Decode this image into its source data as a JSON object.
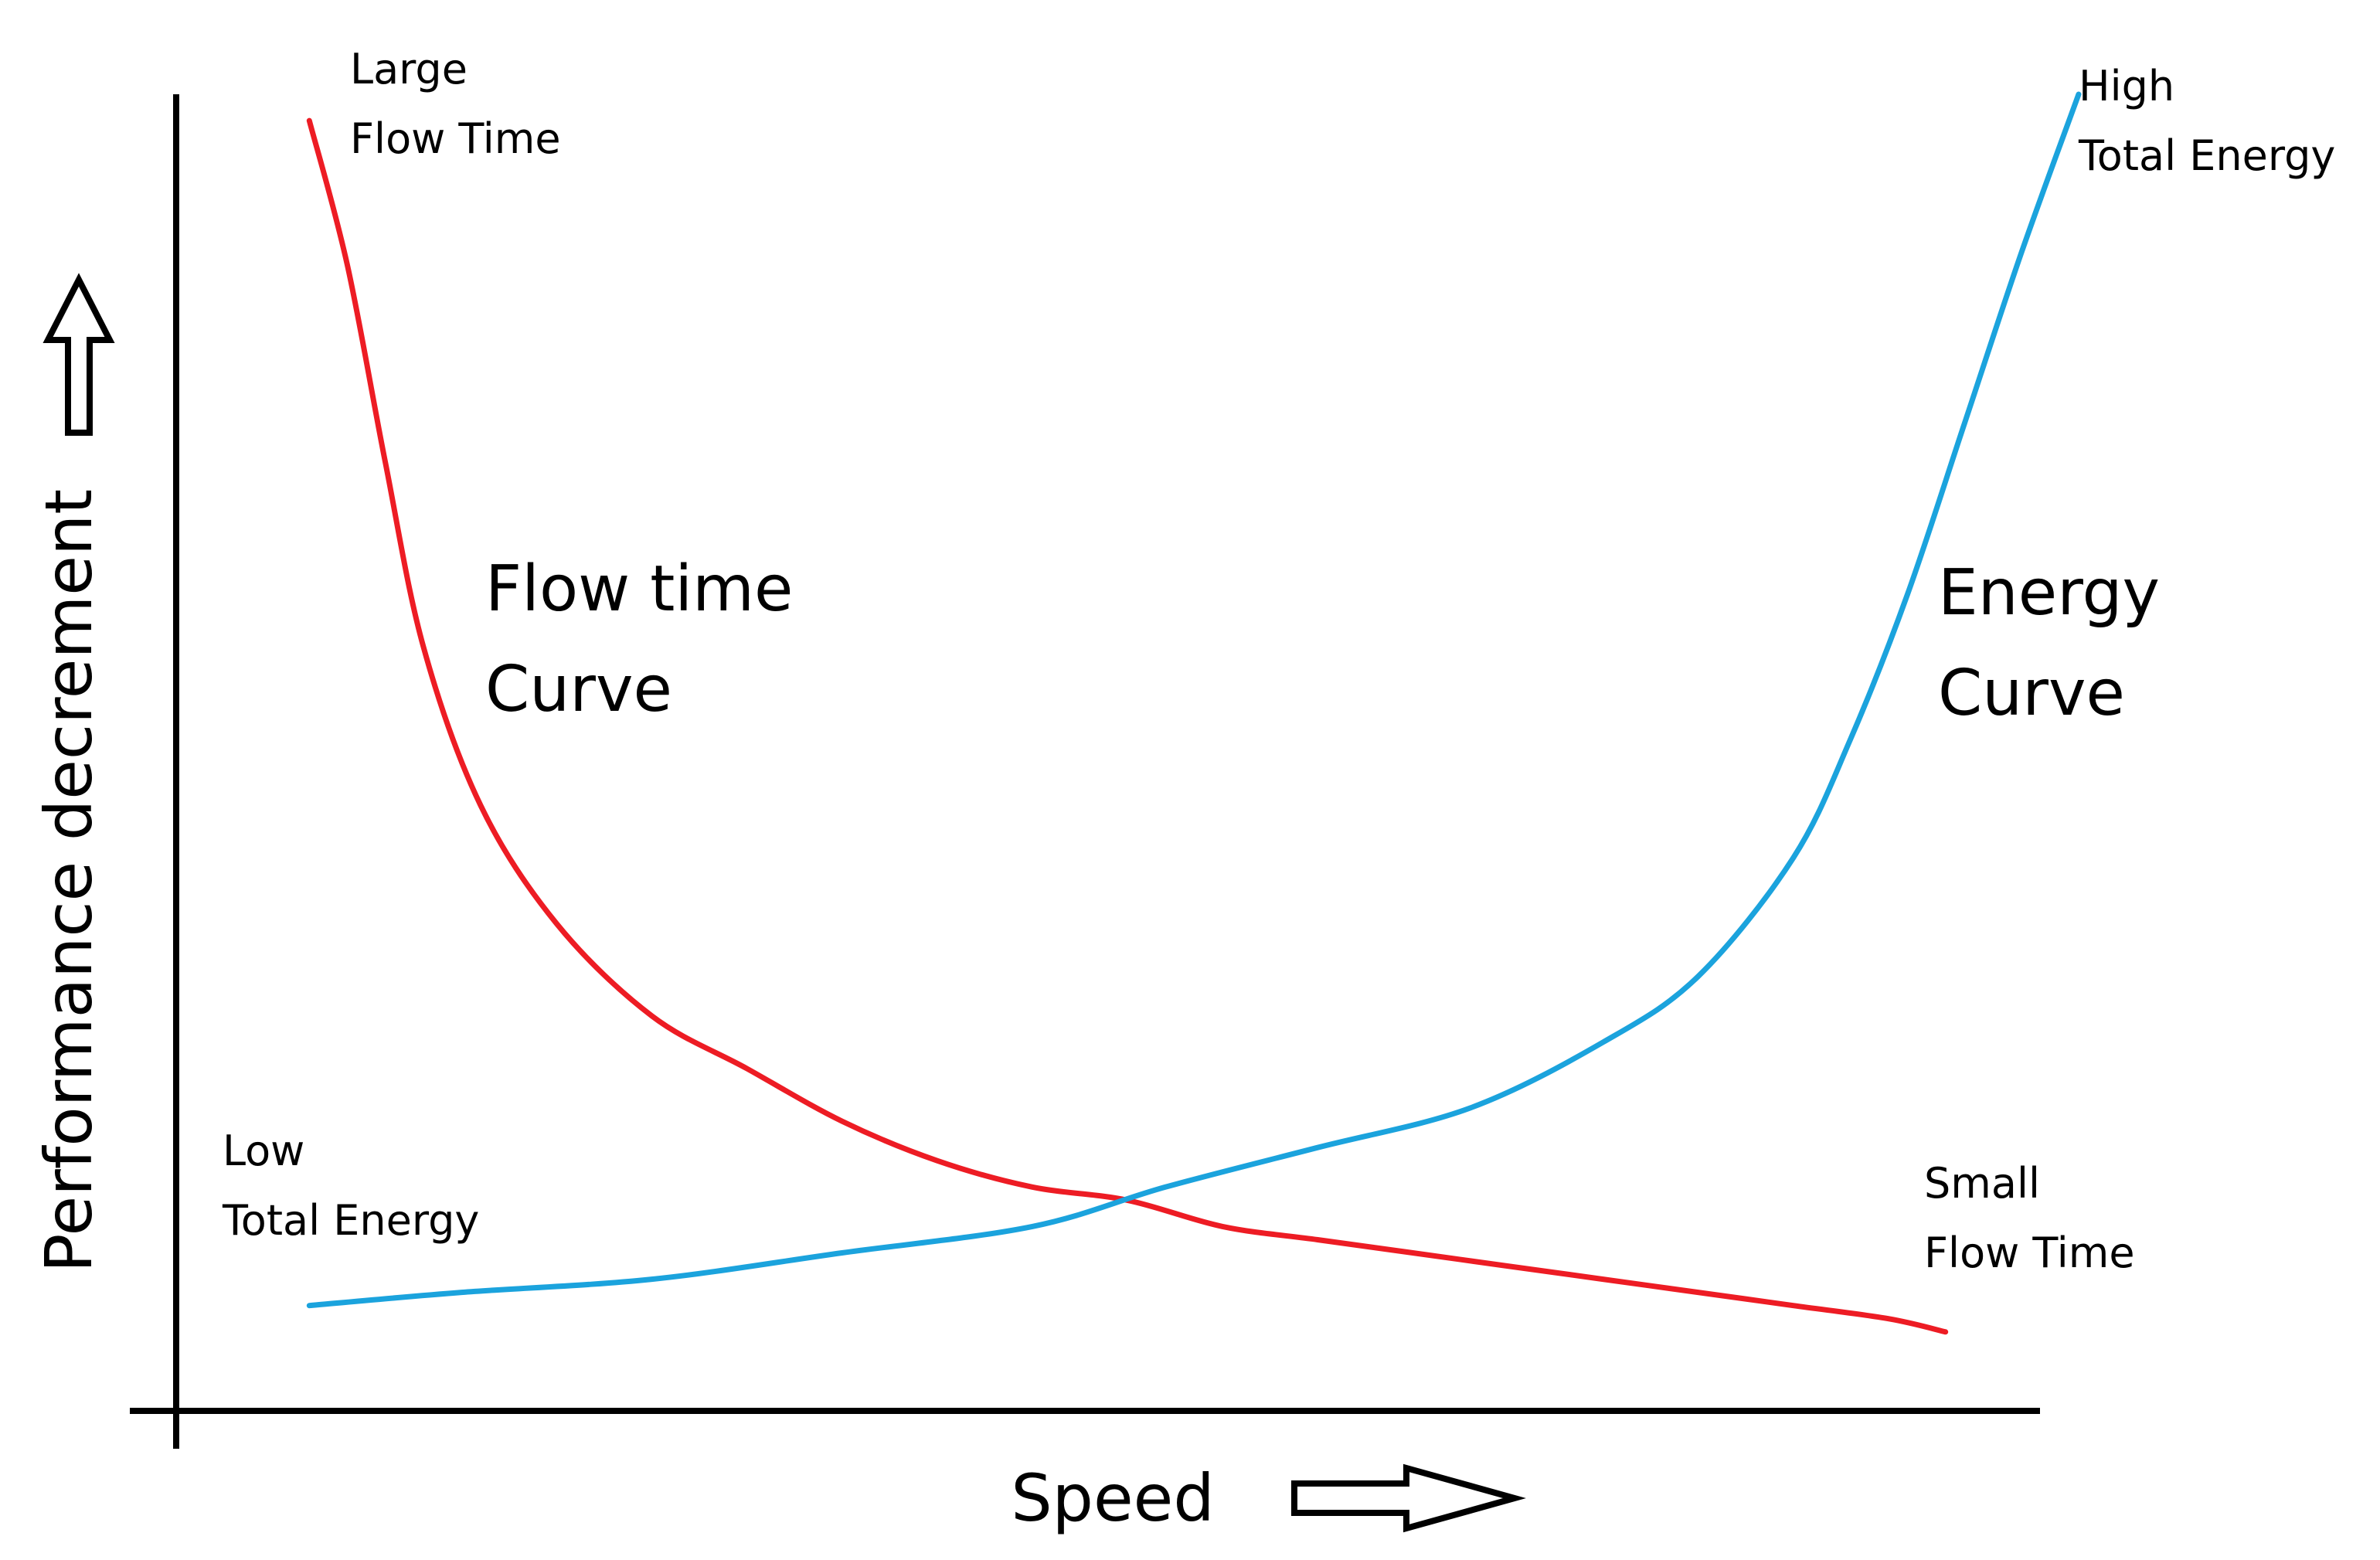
{
  "chart_data": {
    "type": "line",
    "xlabel": "Speed",
    "ylabel": "Performance decrement",
    "grid": false,
    "legend": "none",
    "series": [
      {
        "name": "Flow time Curve",
        "color": "#ed1c24",
        "x": [
          0.07,
          0.09,
          0.11,
          0.13,
          0.16,
          0.2,
          0.25,
          0.3,
          0.35,
          0.4,
          0.45,
          0.5,
          0.55,
          0.6,
          0.65,
          0.7,
          0.75,
          0.8,
          0.85,
          0.9,
          0.93
        ],
        "y": [
          0.98,
          0.87,
          0.72,
          0.58,
          0.46,
          0.37,
          0.3,
          0.26,
          0.22,
          0.19,
          0.17,
          0.16,
          0.14,
          0.13,
          0.12,
          0.11,
          0.1,
          0.09,
          0.08,
          0.07,
          0.06
        ]
      },
      {
        "name": "Energy Curve",
        "color": "#1ba3dd",
        "x": [
          0.07,
          0.15,
          0.25,
          0.35,
          0.45,
          0.52,
          0.6,
          0.68,
          0.75,
          0.8,
          0.85,
          0.88,
          0.91,
          0.94,
          0.97,
          1.0
        ],
        "y": [
          0.08,
          0.09,
          0.1,
          0.12,
          0.14,
          0.17,
          0.2,
          0.23,
          0.28,
          0.33,
          0.42,
          0.51,
          0.62,
          0.75,
          0.88,
          1.0
        ]
      }
    ],
    "annotations": {
      "flow_top": [
        "Large",
        "Flow Time"
      ],
      "energy_top": [
        "High",
        "Total Energy"
      ],
      "energy_bottom": [
        "Low",
        "Total Energy"
      ],
      "flow_bottom": [
        "Small",
        "Flow Time"
      ],
      "flow_curve_label": [
        "Flow time",
        "Curve"
      ],
      "energy_curve_label": [
        "Energy",
        "Curve"
      ]
    }
  }
}
